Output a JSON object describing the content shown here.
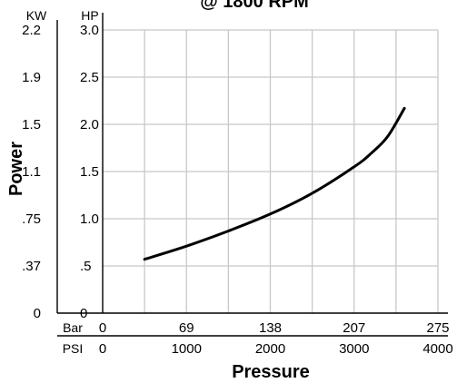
{
  "chart_data": {
    "type": "line",
    "title": "@ 1800 RPM",
    "xlabel": "Pressure",
    "ylabel": "Power",
    "grid": true,
    "x_axes": [
      {
        "unit": "Bar",
        "ticks": [
          "0",
          "69",
          "138",
          "207",
          "275"
        ]
      },
      {
        "unit": "PSI",
        "ticks": [
          "0",
          "1000",
          "2000",
          "3000",
          "4000"
        ]
      }
    ],
    "y_axes": [
      {
        "unit": "KW",
        "ticks": [
          "0",
          ".37",
          ".75",
          "1.1",
          "1.5",
          "1.9",
          "2.2"
        ]
      },
      {
        "unit": "HP",
        "ticks": [
          "0",
          ".5",
          "1.0",
          "1.5",
          "2.0",
          "2.5",
          "3.0"
        ]
      }
    ],
    "xlim": [
      0,
      4000
    ],
    "ylim": [
      0,
      3.0
    ],
    "x_units": "PSI",
    "y_units": "HP",
    "series": [
      {
        "x": [
          500,
          1000,
          1500,
          2000,
          2500,
          3000,
          3200,
          3400,
          3600
        ],
        "y": [
          0.57,
          0.71,
          0.87,
          1.05,
          1.27,
          1.55,
          1.69,
          1.87,
          2.17
        ]
      }
    ]
  }
}
